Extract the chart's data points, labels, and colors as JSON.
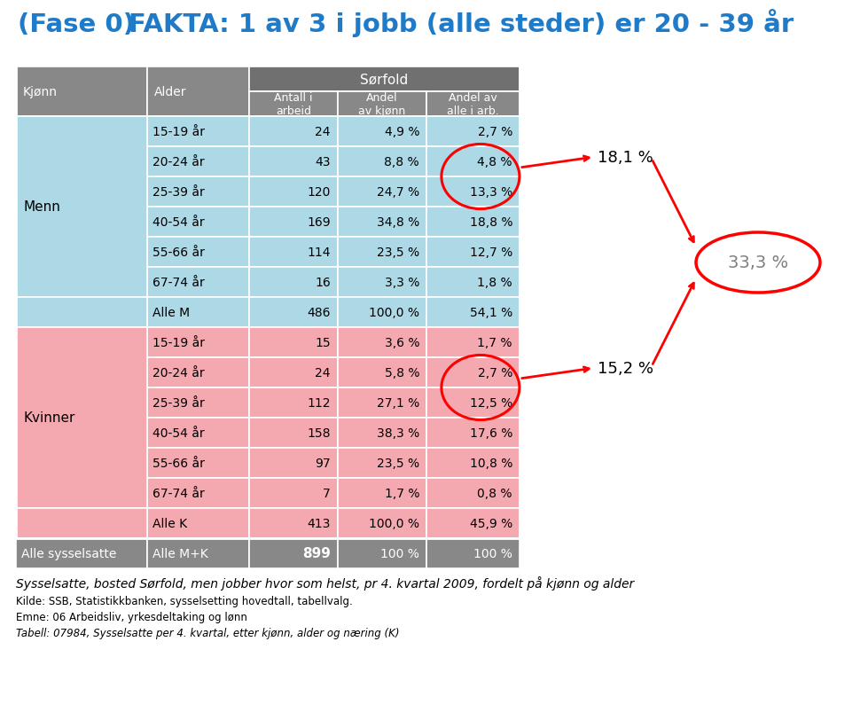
{
  "title_left": "(Fase 0)",
  "title_right": "FAKTA: 1 av 3 i jobb (alle steder) er 20 - 39 år",
  "title_color": "#1F7BC8",
  "header_group": "Sørfold",
  "menn_rows": [
    [
      "Menn",
      "15-19 år",
      "24",
      "4,9 %",
      "2,7 %"
    ],
    [
      "",
      "20-24 år",
      "43",
      "8,8 %",
      "4,8 %"
    ],
    [
      "",
      "25-39 år",
      "120",
      "24,7 %",
      "13,3 %"
    ],
    [
      "",
      "40-54 år",
      "169",
      "34,8 %",
      "18,8 %"
    ],
    [
      "",
      "55-66 år",
      "114",
      "23,5 %",
      "12,7 %"
    ],
    [
      "",
      "67-74 år",
      "16",
      "3,3 %",
      "1,8 %"
    ],
    [
      "",
      "Alle M",
      "486",
      "100,0 %",
      "54,1 %"
    ]
  ],
  "kvinner_rows": [
    [
      "Kvinner",
      "15-19 år",
      "15",
      "3,6 %",
      "1,7 %"
    ],
    [
      "",
      "20-24 år",
      "24",
      "5,8 %",
      "2,7 %"
    ],
    [
      "",
      "25-39 år",
      "112",
      "27,1 %",
      "12,5 %"
    ],
    [
      "",
      "40-54 år",
      "158",
      "38,3 %",
      "17,6 %"
    ],
    [
      "",
      "55-66 år",
      "97",
      "23,5 %",
      "10,8 %"
    ],
    [
      "",
      "67-74 år",
      "7",
      "1,7 %",
      "0,8 %"
    ],
    [
      "",
      "Alle K",
      "413",
      "100,0 %",
      "45,9 %"
    ]
  ],
  "alle_row": [
    "Alle sysselsatte",
    "Alle M+K",
    "899",
    "100 %",
    "100 %"
  ],
  "menn_bg": "#ADD8E6",
  "kvinner_bg": "#F4A8B0",
  "header_bg": "#888888",
  "alle_bg": "#888888",
  "subheader_bg": "#707070",
  "subtitle": "Sysselsatte, bosted Sørfold, men jobber hvor som helst, pr 4. kvartal 2009, fordelt på kjønn og alder",
  "footnote1": "Kilde: SSB, Statistikkbanken, sysselsetting hovedtall, tabellvalg.",
  "footnote2": "Emne: 06 Arbeidsliv, yrkesdeltaking og lønn",
  "footnote3": "Tabell: 07984, Sysselsatte per 4. kvartal, etter kjønn, alder og næring (K)",
  "annotation_181": "18,1 %",
  "annotation_152": "15,2 %",
  "annotation_333": "33,3 %"
}
